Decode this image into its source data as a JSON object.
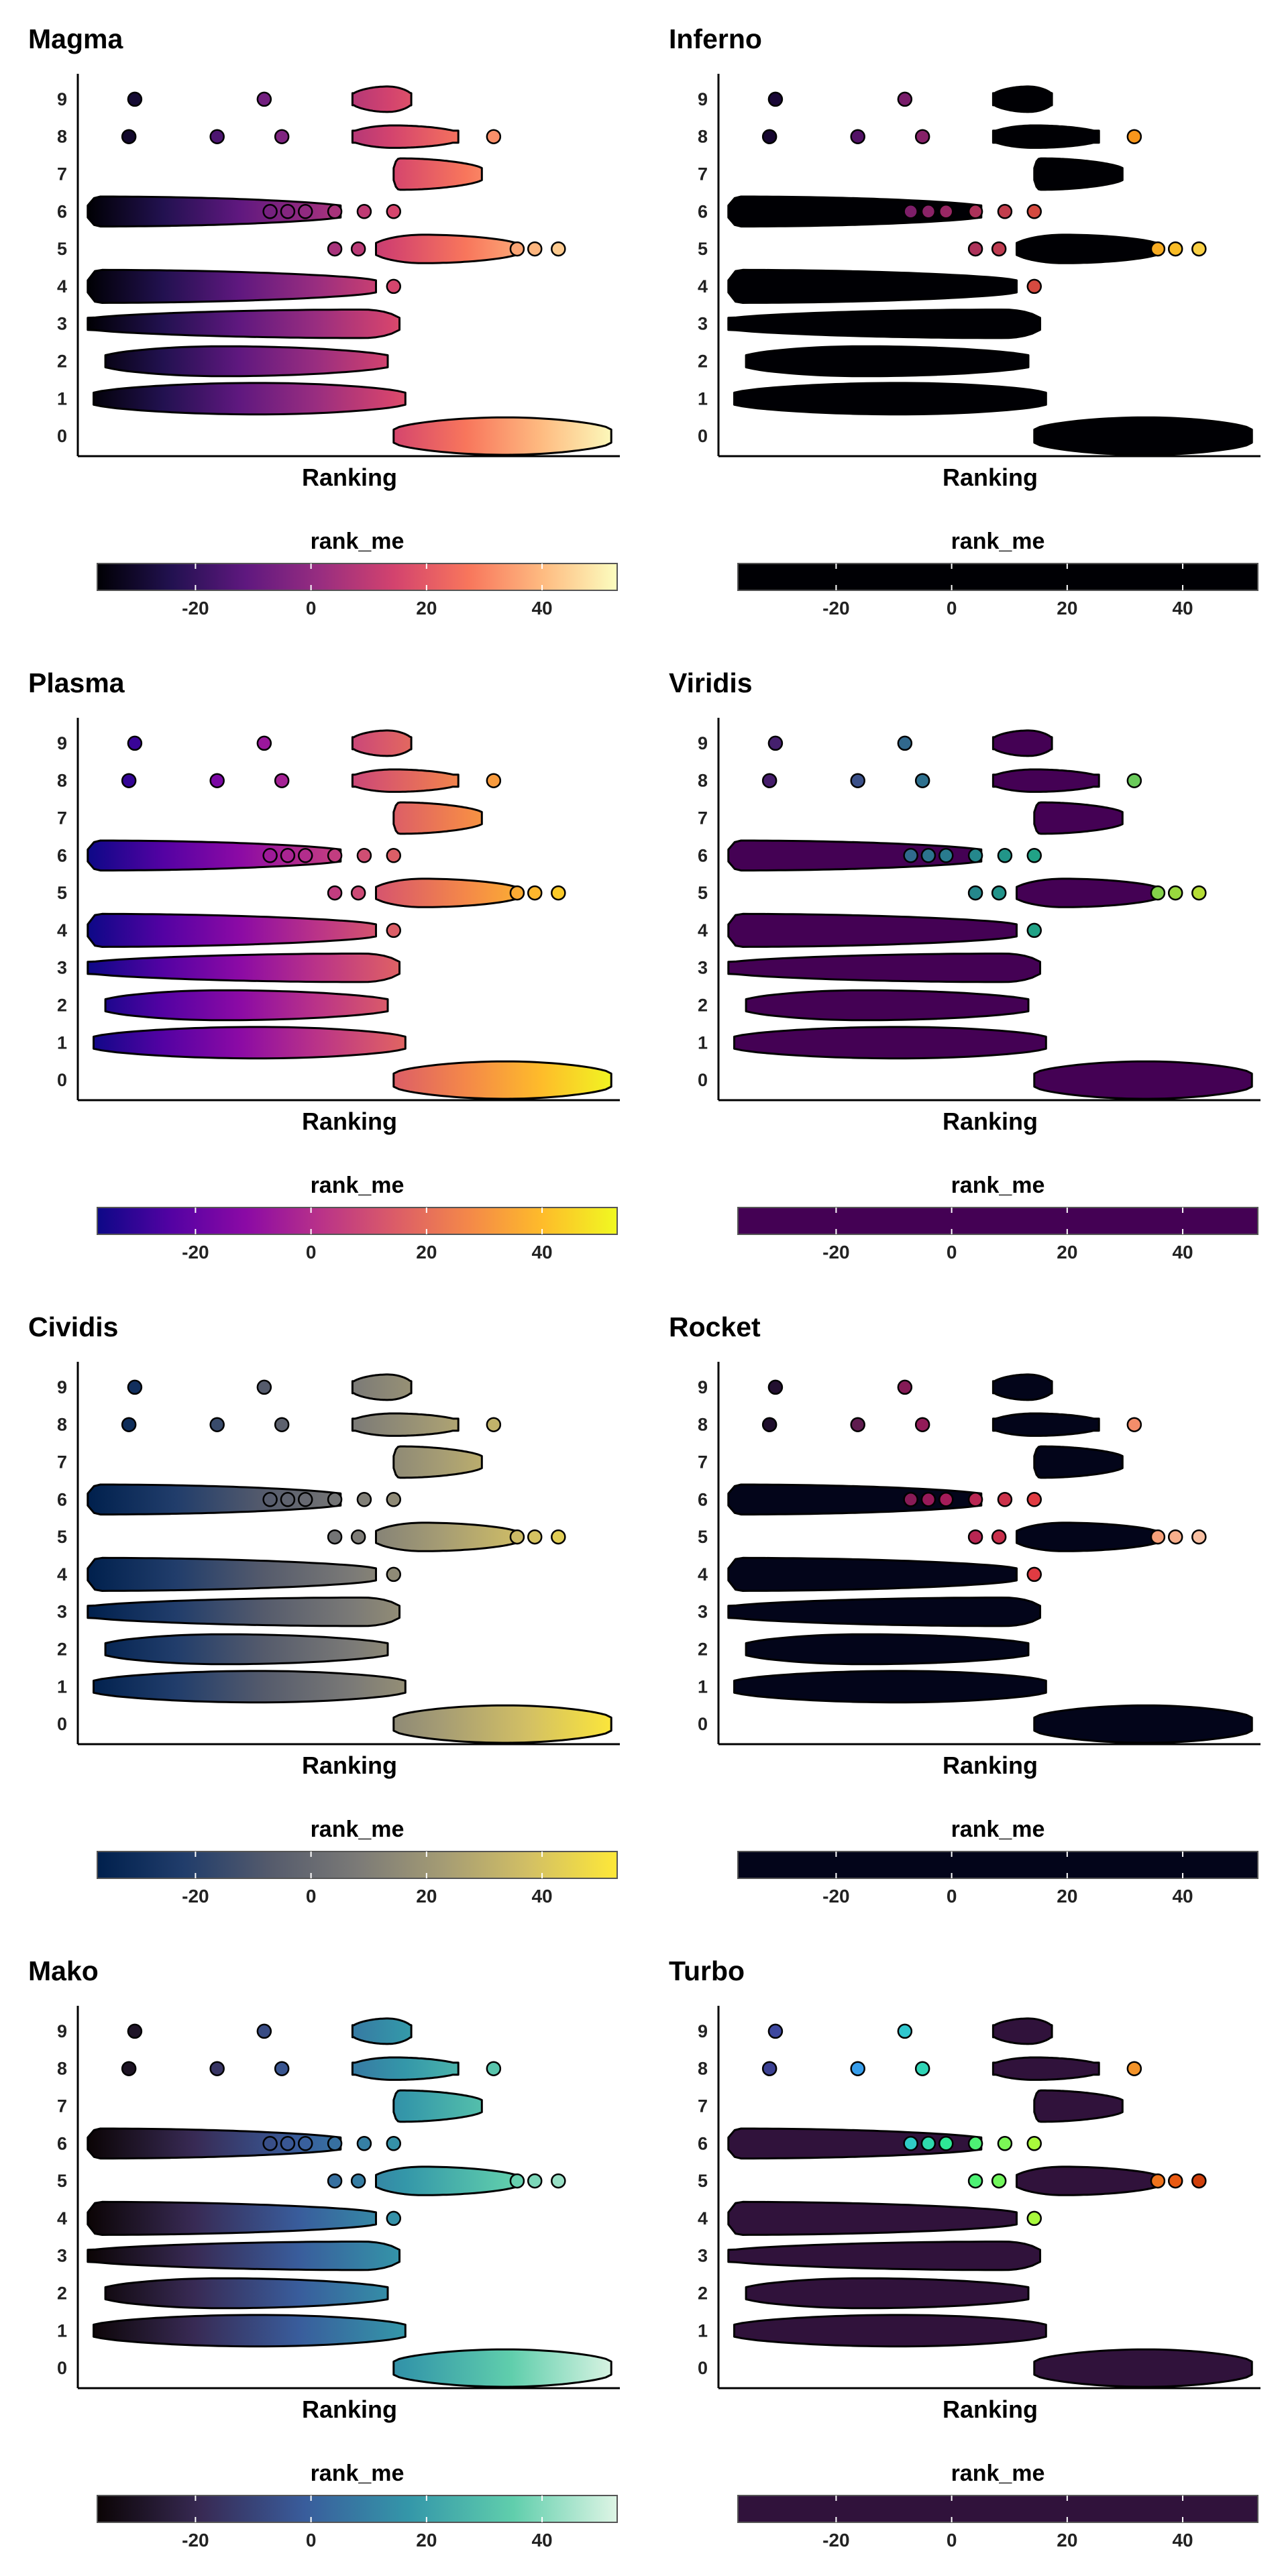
{
  "chart_data": [
    {
      "type": "beeswarm",
      "title": "Magma",
      "xlabel": "Ranking",
      "ylabel": "",
      "palette": [
        "#000004",
        "#221150",
        "#5f187f",
        "#982d80",
        "#d3436e",
        "#f8765c",
        "#febb81",
        "#fcfdbf"
      ]
    },
    {
      "type": "beeswarm",
      "title": "Inferno",
      "xlabel": "Ranking",
      "ylabel": "",
      "palette": [
        "#000004",
        "#280b54",
        "#65156e",
        "#9f2a63",
        "#d44842",
        "#f57d15",
        "#fac228",
        "#fcffa4"
      ]
    },
    {
      "type": "beeswarm",
      "title": "Plasma",
      "xlabel": "Ranking",
      "ylabel": "",
      "palette": [
        "#0d0887",
        "#5402a3",
        "#8b0aa5",
        "#b93289",
        "#db5c68",
        "#f48849",
        "#febc2a",
        "#f0f921"
      ]
    },
    {
      "type": "beeswarm",
      "title": "Viridis",
      "xlabel": "Ranking",
      "ylabel": "",
      "palette": [
        "#440154",
        "#46337e",
        "#365c8d",
        "#277f8e",
        "#1fa187",
        "#4ac16d",
        "#a0da39",
        "#fde725"
      ]
    },
    {
      "type": "beeswarm",
      "title": "Cividis",
      "xlabel": "Ranking",
      "ylabel": "",
      "palette": [
        "#00204d",
        "#213d6b",
        "#555b6c",
        "#7b7a77",
        "#a59c74",
        "#d3c064",
        "#fee838"
      ]
    },
    {
      "type": "beeswarm",
      "title": "Rocket",
      "xlabel": "Ranking",
      "ylabel": "",
      "palette": [
        "#03051a",
        "#4c1d4b",
        "#a11a5b",
        "#e83f3f",
        "#f69c73",
        "#faebdd"
      ]
    },
    {
      "type": "beeswarm",
      "title": "Mako",
      "xlabel": "Ranking",
      "ylabel": "",
      "palette": [
        "#0b0405",
        "#382a54",
        "#395d9c",
        "#3497a9",
        "#60ceac",
        "#def5e5"
      ]
    },
    {
      "type": "beeswarm",
      "title": "Turbo",
      "xlabel": "Ranking",
      "ylabel": "",
      "palette": [
        "#30123b",
        "#4669dc",
        "#31b3f2",
        "#2eef88",
        "#a4fc3c",
        "#f9ba38",
        "#e9510e",
        "#7a0403"
      ]
    }
  ],
  "shared": {
    "x_range": [
      -38,
      53
    ],
    "y_categories": [
      "0",
      "1",
      "2",
      "3",
      "4",
      "5",
      "6",
      "7",
      "8",
      "9"
    ],
    "legend_title": "rank_me",
    "legend_ticks": [
      "-20",
      "0",
      "20",
      "40"
    ],
    "legend_tick_values": [
      -20,
      0,
      20,
      40
    ],
    "legend_range": [
      -37,
      53
    ],
    "groups": [
      {
        "cat": "0",
        "min": 15,
        "max": 52,
        "median": 34,
        "width": 0.5,
        "outliers": []
      },
      {
        "cat": "1",
        "min": -36,
        "max": 17,
        "median": -8,
        "width": 0.42,
        "outliers": []
      },
      {
        "cat": "2",
        "min": -34,
        "max": 14,
        "median": -14,
        "width": 0.4,
        "outliers": []
      },
      {
        "cat": "3",
        "min": -37,
        "max": 16,
        "median": 10,
        "width": 0.38,
        "outliers": []
      },
      {
        "cat": "4",
        "min": -37,
        "max": 12,
        "median": -35,
        "width": 0.44,
        "outliers": [
          15
        ]
      },
      {
        "cat": "5",
        "min": 12,
        "max": 36,
        "median": 20,
        "width": 0.38,
        "outliers": [
          5,
          9,
          36,
          39,
          43
        ]
      },
      {
        "cat": "6",
        "min": -37,
        "max": 6,
        "median": -35,
        "width": 0.4,
        "outliers": [
          -6,
          -3,
          0,
          5,
          10,
          15
        ]
      },
      {
        "cat": "7",
        "min": 15,
        "max": 30,
        "median": 16,
        "width": 0.42,
        "outliers": []
      },
      {
        "cat": "8",
        "min": 8,
        "max": 26,
        "median": 15,
        "width": 0.3,
        "outliers": [
          -30,
          -15,
          -4,
          32
        ]
      },
      {
        "cat": "9",
        "min": 8,
        "max": 18,
        "median": 14,
        "width": 0.34,
        "outliers": [
          -29,
          -7
        ]
      }
    ]
  }
}
